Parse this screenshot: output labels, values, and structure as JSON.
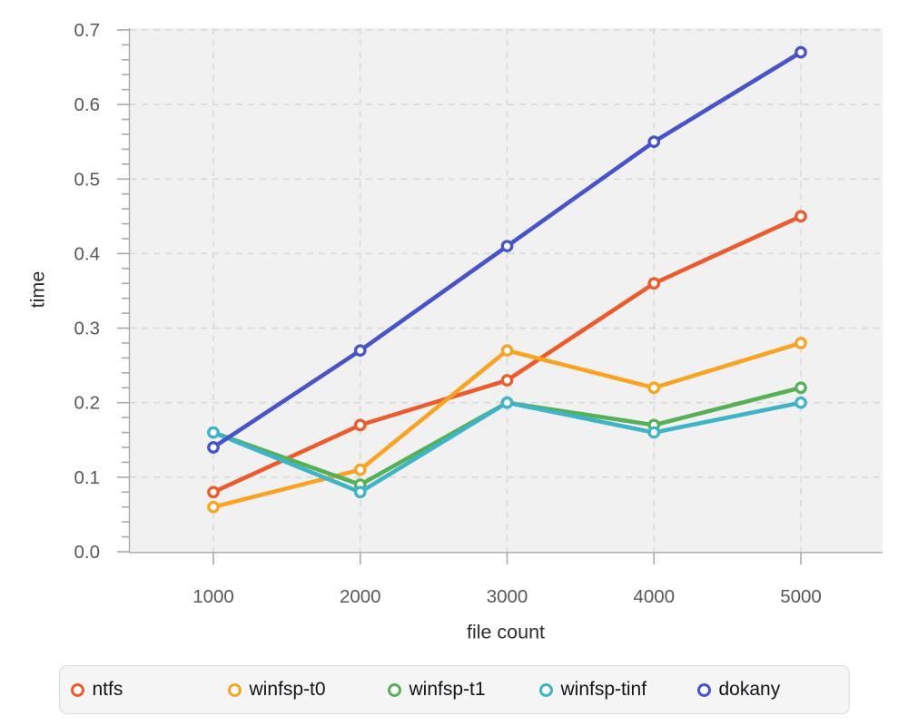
{
  "chart_data": {
    "type": "line",
    "title": "",
    "xlabel": "file count",
    "ylabel": "time",
    "x": [
      1000,
      2000,
      3000,
      4000,
      5000
    ],
    "xtick_labels": [
      "1000",
      "2000",
      "3000",
      "4000",
      "5000"
    ],
    "yticks": [
      0.0,
      0.1,
      0.2,
      0.3,
      0.4,
      0.5,
      0.6,
      0.7
    ],
    "ytick_labels": [
      "0.0",
      "0.1",
      "0.2",
      "0.3",
      "0.4",
      "0.5",
      "0.6",
      "0.7"
    ],
    "ylim": [
      0,
      0.7
    ],
    "minor_ytick_step": 0.02,
    "grid": "dashed",
    "marker": "open-circle",
    "legend_position": "bottom",
    "series": [
      {
        "name": "ntfs",
        "color": "#eb5b2c",
        "values": [
          0.08,
          0.17,
          0.23,
          0.36,
          0.45
        ]
      },
      {
        "name": "winfsp-t0",
        "color": "#f8a324",
        "values": [
          0.06,
          0.11,
          0.27,
          0.22,
          0.28
        ]
      },
      {
        "name": "winfsp-t1",
        "color": "#56b056",
        "values": [
          0.16,
          0.09,
          0.2,
          0.17,
          0.22
        ]
      },
      {
        "name": "winfsp-tinf",
        "color": "#3fb3c8",
        "values": [
          0.16,
          0.08,
          0.2,
          0.16,
          0.2
        ]
      },
      {
        "name": "dokany",
        "color": "#4753c9",
        "values": [
          0.14,
          0.27,
          0.41,
          0.55,
          0.67
        ]
      }
    ]
  },
  "style_colors": {
    "plot_background": "#f1f1f1",
    "gridline": "#d9d9d9",
    "spine": "#b3b3b3",
    "tick": "#a9a9a9",
    "tick_label": "#58585b",
    "axis_title": "#2e2e32",
    "legend_background": "#f5f5f5",
    "legend_border": "#dcdcdc",
    "legend_text": "#131318"
  }
}
